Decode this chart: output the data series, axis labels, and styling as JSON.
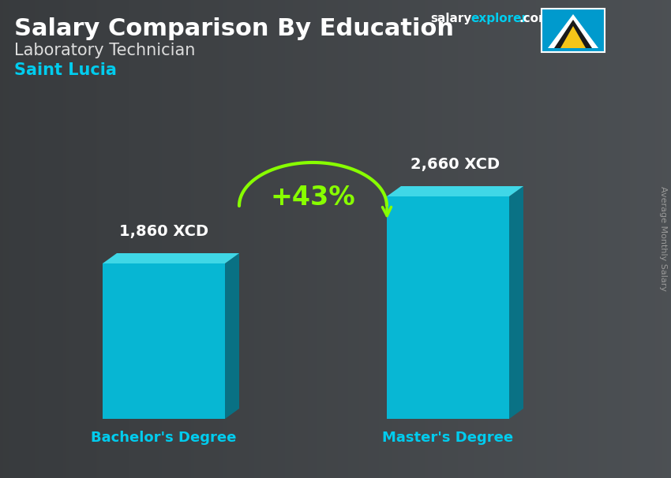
{
  "title_main": "Salary Comparison By Education",
  "subtitle": "Laboratory Technician",
  "country": "Saint Lucia",
  "categories": [
    "Bachelor's Degree",
    "Master's Degree"
  ],
  "values": [
    1860,
    2660
  ],
  "value_labels": [
    "1,860 XCD",
    "2,660 XCD"
  ],
  "pct_change": "+43%",
  "face_color": "#00c8e8",
  "top_color": "#40e0f0",
  "side_color": "#007a90",
  "ylabel": "Average Monthly Salary",
  "bg_color": "#383838",
  "title_color": "#ffffff",
  "subtitle_color": "#dddddd",
  "country_color": "#00ccee",
  "label_color": "#ffffff",
  "xticklabel_color": "#00ccee",
  "pct_color": "#88ff00",
  "arrow_color": "#88ff00",
  "ylabel_color": "#999999",
  "salary_color": "#ffffff",
  "explorer_color": "#00ccee"
}
